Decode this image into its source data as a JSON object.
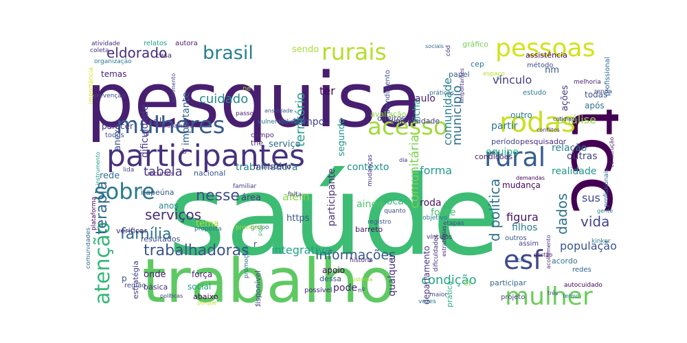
{
  "wordcloud": {
    "words": [
      {
        "id": "saude",
        "text": "saúde",
        "color": "#3dbc74"
      },
      {
        "id": "pesquisa",
        "text": "pesquisa",
        "color": "#481f70"
      },
      {
        "id": "trabalho",
        "text": "trabalho",
        "color": "#5ec962"
      },
      {
        "id": "tcc",
        "text": "tcc",
        "color": "#440154"
      },
      {
        "id": "participantes",
        "text": "participantes",
        "color": "#46327e"
      },
      {
        "id": "mulheres",
        "text": "mulheres",
        "color": "#365c8d"
      },
      {
        "id": "rurais",
        "text": "rurais",
        "color": "#b5de2b"
      },
      {
        "id": "pessoas",
        "text": "pessoas",
        "color": "#d2e21b"
      },
      {
        "id": "acesso",
        "text": "acesso",
        "color": "#9fda3a"
      },
      {
        "id": "rodas",
        "text": "rodas",
        "color": "#c8e020"
      },
      {
        "id": "rural",
        "text": "rural",
        "color": "#355f8d"
      },
      {
        "id": "brasil",
        "text": "brasil",
        "color": "#277f8e"
      },
      {
        "id": "sobre",
        "text": "sobre",
        "color": "#2a788e"
      },
      {
        "id": "mulher",
        "text": "mulher",
        "color": "#6ccd5a"
      },
      {
        "id": "esf",
        "text": "esf",
        "color": "#3e4989"
      },
      {
        "id": "atencao",
        "text": "atenção",
        "color": "#35b779"
      },
      {
        "id": "trabalhadoras",
        "text": "trabalhadoras",
        "color": "#3b528b"
      },
      {
        "id": "eldorado",
        "text": "eldorado",
        "color": "#472d7b"
      },
      {
        "id": "cuidado",
        "text": "cuidado",
        "color": "#24878e"
      },
      {
        "id": "nesse",
        "text": "nesse",
        "color": "#3d4e8a"
      },
      {
        "id": "familia",
        "text": "família",
        "color": "#2d708e"
      },
      {
        "id": "servicos",
        "text": "serviços",
        "color": "#472c7a"
      },
      {
        "id": "terapia",
        "text": "terapia",
        "color": "#31688e"
      },
      {
        "id": "informacoes",
        "text": "informações",
        "color": "#38588c"
      },
      {
        "id": "comunitaria",
        "text": "comunitária",
        "color": "#7ad151"
      },
      {
        "id": "integrativa",
        "text": "integrativa",
        "color": "#20a386"
      },
      {
        "id": "condicao",
        "text": "condição",
        "color": "#22a884"
      },
      {
        "id": "territorio",
        "text": "território",
        "color": "#1f9e89"
      },
      {
        "id": "vida",
        "text": "vida",
        "color": "#414487"
      },
      {
        "id": "populacao",
        "text": "população",
        "color": "#3a548c"
      },
      {
        "id": "tabela",
        "text": "tabela",
        "color": "#463480"
      },
      {
        "id": "forma",
        "text": "forma",
        "color": "#1e9b8a"
      },
      {
        "id": "dados",
        "text": "dados",
        "color": "#2c738e"
      },
      {
        "id": "politica",
        "text": "d política",
        "color": "#2d718e"
      },
      {
        "id": "municipio",
        "text": "município",
        "color": "#2e6e8e"
      },
      {
        "id": "comunidade",
        "text": "comunidade",
        "color": "#26828e"
      },
      {
        "id": "importante",
        "text": "importante",
        "color": "#32648e"
      },
      {
        "id": "dificuldade",
        "text": "dificuldade",
        "color": "#443a83"
      },
      {
        "id": "analise",
        "text": "análise",
        "color": "#95d840"
      },
      {
        "id": "vinculo",
        "text": "vínculo",
        "color": "#433e85"
      },
      {
        "id": "ficha",
        "text": "ficha",
        "color": "#1fa188"
      },
      {
        "id": "paulo",
        "text": "paulo",
        "color": "#481c6e"
      },
      {
        "id": "tempo",
        "text": "tempo",
        "color": "#3f4788"
      },
      {
        "id": "sendo",
        "text": "sendo",
        "color": "#a8db34"
      },
      {
        "id": "ter",
        "text": "ter",
        "color": "#450457"
      },
      {
        "id": "equipe",
        "text": "equipe",
        "color": "#29af7f"
      },
      {
        "id": "figura",
        "text": "figura",
        "color": "#471365"
      },
      {
        "id": "realidade",
        "text": "realidade",
        "color": "#1f968b"
      },
      {
        "id": "relacao",
        "text": "relação",
        "color": "#287d8e"
      },
      {
        "id": "outras",
        "text": "outras",
        "color": "#423f85"
      },
      {
        "id": "contexto",
        "text": "contexto",
        "color": "#21918c"
      },
      {
        "id": "local",
        "text": "local",
        "color": "#31b57b"
      },
      {
        "id": "ainda",
        "text": "ainda",
        "color": "#4cc26c"
      },
      {
        "id": "fonte",
        "text": "fonte",
        "color": "#4ac16d"
      },
      {
        "id": "participante",
        "text": "participante",
        "color": "#4f2f7e"
      },
      {
        "id": "qualquer",
        "text": "qualquer",
        "color": "#46307e"
      },
      {
        "id": "trabalhadora",
        "text": "trabalhadora",
        "color": "#27808e"
      },
      {
        "id": "servico",
        "text": "serviço",
        "color": "#2f6c8e"
      },
      {
        "id": "partir",
        "text": "partir",
        "color": "#2a768e"
      },
      {
        "id": "outro",
        "text": "outro",
        "color": "#29798e"
      },
      {
        "id": "sus",
        "text": "sus",
        "color": "#3f4889"
      },
      {
        "id": "acoes",
        "text": "ações",
        "color": "#443983"
      },
      {
        "id": "apos",
        "text": "após",
        "color": "#2c728e"
      },
      {
        "id": "todas",
        "text": "todas",
        "color": "#3b518b"
      },
      {
        "id": "roda",
        "text": "roda",
        "color": "#471063"
      },
      {
        "id": "mudanca",
        "text": "mudança",
        "color": "#450559"
      },
      {
        "id": "filhos",
        "text": "filhos",
        "color": "#297b8e"
      },
      {
        "id": "alem",
        "text": "além",
        "color": "#8bd646"
      },
      {
        "id": "area",
        "text": "área",
        "color": "#453882"
      },
      {
        "id": "https",
        "text": "https",
        "color": "#39558c"
      },
      {
        "id": "rede",
        "text": "rede",
        "color": "#2e6f8e"
      },
      {
        "id": "anos",
        "text": "anos",
        "color": "#25848e"
      },
      {
        "id": "tema",
        "text": "tema",
        "color": "#b0dd2f"
      },
      {
        "id": "anexo",
        "text": "anexo",
        "color": "#3c508b"
      },
      {
        "id": "onde",
        "text": "onde",
        "color": "#48186a"
      },
      {
        "id": "al",
        "text": "al",
        "color": "#3f4889"
      },
      {
        "id": "temas",
        "text": "temas",
        "color": "#482374"
      },
      {
        "id": "pode",
        "text": "pode",
        "color": "#482071"
      },
      {
        "id": "departamento",
        "text": "departamento",
        "color": "#46317e"
      },
      {
        "id": "estudo",
        "text": "estudo",
        "color": "#2a778e"
      },
      {
        "id": "gente",
        "text": "gente",
        "color": "#24868e"
      },
      {
        "id": "parecer",
        "text": "parecer",
        "color": "#45337d"
      },
      {
        "id": "todos",
        "text": "todos",
        "color": "#3b518b"
      },
      {
        "id": "nacional",
        "text": "nacional",
        "color": "#3a538b"
      },
      {
        "id": "itapeuna",
        "text": "itapeúna",
        "color": "#39568c"
      },
      {
        "id": "verificar",
        "text": "verificar",
        "color": "#482475"
      },
      {
        "id": "resultados",
        "text": "resultados",
        "color": "#3e4a89"
      },
      {
        "id": "estrategia",
        "text": "estratégia",
        "color": "#433d84"
      },
      {
        "id": "regiao",
        "text": "região",
        "color": "#3f4889"
      },
      {
        "id": "basica",
        "text": "básica",
        "color": "#472a7a"
      },
      {
        "id": "social",
        "text": "social",
        "color": "#1f9f88"
      },
      {
        "id": "forca",
        "text": "força",
        "color": "#481b6d"
      },
      {
        "id": "abaixo",
        "text": "abaixo",
        "color": "#440154"
      },
      {
        "id": "possivel",
        "text": "possível",
        "color": "#482576"
      },
      {
        "id": "disponivel",
        "text": "disponível",
        "color": "#404588"
      },
      {
        "id": "apoio",
        "text": "apoio",
        "color": "#440154"
      },
      {
        "id": "dessa",
        "text": "dessa",
        "color": "#3c4f8a"
      },
      {
        "id": "pratica",
        "text": "prática",
        "color": "#27ad81"
      },
      {
        "id": "participar",
        "text": "participar",
        "color": "#31668e"
      },
      {
        "id": "projeto",
        "text": "projeto",
        "color": "#414387"
      },
      {
        "id": "acordo",
        "text": "acordo",
        "color": "#2d708e"
      },
      {
        "id": "redes",
        "text": "redes",
        "color": "#33628d"
      },
      {
        "id": "assim",
        "text": "assim",
        "color": "#414287"
      },
      {
        "id": "outros",
        "text": "outros",
        "color": "#3b528b"
      },
      {
        "id": "autocuidado",
        "text": "autocuidado",
        "color": "#440154"
      },
      {
        "id": "segundo",
        "text": "segundo",
        "color": "#1f978b"
      },
      {
        "id": "universidade",
        "text": "universidade",
        "color": "#46337f"
      },
      {
        "id": "direitos",
        "text": "direitos",
        "color": "#3f4889"
      },
      {
        "id": "campo",
        "text": "campo",
        "color": "#482878"
      },
      {
        "id": "the",
        "text": "the",
        "color": "#472f7d"
      },
      {
        "id": "ministerio",
        "text": "ministério",
        "color": "#481668"
      },
      {
        "id": "barreto",
        "text": "barreto",
        "color": "#471164"
      },
      {
        "id": "condicoes",
        "text": "condições",
        "color": "#48196b"
      },
      {
        "id": "periodo",
        "text": "período",
        "color": "#404588"
      },
      {
        "id": "pesquisador",
        "text": "pesquisador",
        "color": "#46307e"
      },
      {
        "id": "avaliacao",
        "text": "avaliação",
        "color": "#8fd744"
      },
      {
        "id": "atendimento",
        "text": "atendimento",
        "color": "#3d4d8a"
      },
      {
        "id": "papel",
        "text": "papel",
        "color": "#34608d"
      },
      {
        "id": "cep",
        "text": "cep",
        "color": "#2b748e"
      },
      {
        "id": "nm",
        "text": "nm",
        "color": "#3a538b"
      },
      {
        "id": "casa",
        "text": "casa",
        "color": "#482173"
      },
      {
        "id": "autora",
        "text": "autora",
        "color": "#48186a"
      },
      {
        "id": "relatos",
        "text": "relatos",
        "color": "#1fa287"
      },
      {
        "id": "assistencia",
        "text": "assistência",
        "color": "#440154"
      },
      {
        "id": "metodo",
        "text": "método",
        "color": "#3c4f8a"
      },
      {
        "id": "grafico",
        "text": "gráfico",
        "color": "#75d054"
      },
      {
        "id": "profissional",
        "text": "profissional",
        "color": "#31688e"
      },
      {
        "id": "ne",
        "text": "né",
        "color": "#a2da37"
      },
      {
        "id": "passo",
        "text": "passo",
        "color": "#482071"
      },
      {
        "id": "mudancas",
        "text": "mudanças",
        "color": "#46307e"
      },
      {
        "id": "proposta",
        "text": "proposta",
        "color": "#2e6f8e"
      },
      {
        "id": "falta",
        "text": "falta",
        "color": "#3f4889"
      },
      {
        "id": "registro",
        "text": "registro",
        "color": "#3b518b"
      },
      {
        "id": "objetivo",
        "text": "objetivo",
        "color": "#2a778e"
      },
      {
        "id": "vinculos",
        "text": "vínculos",
        "color": "#482677"
      },
      {
        "id": "quanto",
        "text": "quanto",
        "color": "#3d4d8a"
      },
      {
        "id": "dificuldades",
        "text": "dificuldades",
        "color": "#46327e"
      },
      {
        "id": "estrategias",
        "text": "estratégias",
        "color": "#482475"
      },
      {
        "id": "etapas",
        "text": "etapas",
        "color": "#3b528b"
      },
      {
        "id": "grupo",
        "text": "grupo",
        "color": "#2c718e"
      },
      {
        "id": "pois",
        "text": "pois",
        "color": "#35b779"
      },
      {
        "id": "processo",
        "text": "processo",
        "color": "#a5db36"
      },
      {
        "id": "recursos",
        "text": "recursos",
        "color": "#482878"
      },
      {
        "id": "lida",
        "text": "lida",
        "color": "#3e4a89"
      },
      {
        "id": "familiar",
        "text": "familiar",
        "color": "#433e85"
      },
      {
        "id": "instrumento",
        "text": "instrumento",
        "color": "#1f9a8a"
      },
      {
        "id": "plataforma",
        "text": "plataforma",
        "color": "#440154"
      },
      {
        "id": "comunidades",
        "text": "comunidades",
        "color": "#31688e"
      },
      {
        "id": "politicas",
        "text": "políticas",
        "color": "#453581"
      },
      {
        "id": "historia",
        "text": "história",
        "color": "#482979"
      },
      {
        "id": "maior",
        "text": "maior",
        "color": "#3e4989"
      },
      {
        "id": "vezes",
        "text": "vezes",
        "color": "#2b758e"
      },
      {
        "id": "tres",
        "text": "três",
        "color": "#3f4788"
      },
      {
        "id": "termo",
        "text": "termo",
        "color": "#2c728e"
      },
      {
        "id": "porque",
        "text": "porque",
        "color": "#c0df25"
      },
      {
        "id": "gestao",
        "text": "gestão",
        "color": "#471365"
      },
      {
        "id": "kinker",
        "text": "kinker",
        "color": "#2a778e"
      },
      {
        "id": "tcle",
        "text": "tcle",
        "color": "#3b528b"
      },
      {
        "id": "acolhimento",
        "text": "acolhimento",
        "color": "#46307e"
      },
      {
        "id": "construcao",
        "text": "construção",
        "color": "#48196b"
      },
      {
        "id": "profissionais",
        "text": "profissionais",
        "color": "#2f6b8e"
      },
      {
        "id": "demandas",
        "text": "demandas",
        "color": "#440154"
      },
      {
        "id": "conflitos",
        "text": "conflitos",
        "color": "#46327e"
      },
      {
        "id": "cotidiano",
        "text": "cotidiano",
        "color": "#472c7a"
      },
      {
        "id": "renda",
        "text": "renda",
        "color": "#3e4a89"
      },
      {
        "id": "melhoria",
        "text": "melhoria",
        "color": "#481b6d"
      },
      {
        "id": "espaco",
        "text": "espaço",
        "color": "#b8de29"
      },
      {
        "id": "cod",
        "text": "cód",
        "color": "#472a7a"
      },
      {
        "id": "sociais",
        "text": "sociais",
        "color": "#31688e"
      },
      {
        "id": "praticas",
        "text": "práticas",
        "color": "#2d708e"
      },
      {
        "id": "importantes",
        "text": "importantes",
        "color": "#472d7b"
      },
      {
        "id": "sofrimento",
        "text": "sofrimento",
        "color": "#404588"
      },
      {
        "id": "ansiedade",
        "text": "ansiedade",
        "color": "#3b528b"
      },
      {
        "id": "vulnerabilidade",
        "text": "vulnerabilidade",
        "color": "#2c728e"
      },
      {
        "id": "importancia",
        "text": "importância",
        "color": "#d8e219"
      },
      {
        "id": "prevencao",
        "text": "prevenção",
        "color": "#3e4989"
      },
      {
        "id": "organizacao",
        "text": "organização",
        "color": "#2a788e"
      },
      {
        "id": "coleta",
        "text": "coleta",
        "color": "#46327e"
      },
      {
        "id": "atividade",
        "text": "atividade",
        "color": "#472a7a"
      },
      {
        "id": "of",
        "text": "of",
        "color": "#46327e"
      },
      {
        "id": "r",
        "text": "r",
        "color": "#3f4889"
      },
      {
        "id": "b",
        "text": "b",
        "color": "#46327e"
      },
      {
        "id": "p",
        "text": "p",
        "color": "#3b528b"
      },
      {
        "id": "no",
        "text": "nº",
        "color": "#46327e"
      },
      {
        "id": "et",
        "text": "et",
        "color": "#7ad151"
      },
      {
        "id": "promocao",
        "text": "promoção",
        "color": "#2c728e"
      },
      {
        "id": "dia",
        "text": "dia",
        "color": "#472d7b"
      },
      {
        "id": "si",
        "text": "si",
        "color": "#3b528b"
      },
      {
        "id": "trabalhador",
        "text": "trabalhador",
        "color": "#472a7a"
      },
      {
        "id": "sistema",
        "text": "sistema",
        "color": "#a5db36"
      }
    ]
  }
}
